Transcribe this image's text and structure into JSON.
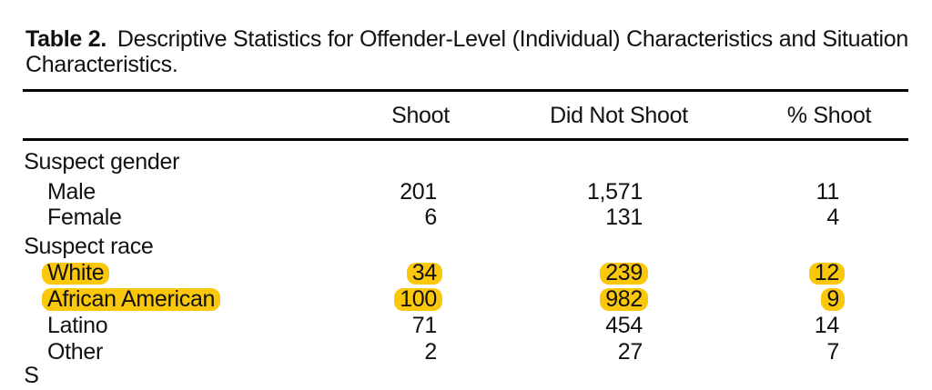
{
  "caption": {
    "label": "Table 2.",
    "line1_rest": "Descriptive Statistics for Offender-Level (Individual) Characteristics and Situation",
    "line2": "Characteristics."
  },
  "table": {
    "columns": [
      "Shoot",
      "Did Not Shoot",
      "% Shoot"
    ],
    "rows": [
      {
        "label": "Suspect gender",
        "indent": false,
        "highlight": false,
        "values": [
          "",
          "",
          ""
        ]
      },
      {
        "label": "Male",
        "indent": true,
        "highlight": false,
        "values": [
          "201",
          "1,571",
          "11"
        ]
      },
      {
        "label": "Female",
        "indent": true,
        "highlight": false,
        "values": [
          "6",
          "131",
          "4"
        ]
      },
      {
        "label": "Suspect race",
        "indent": false,
        "highlight": false,
        "values": [
          "",
          "",
          ""
        ]
      },
      {
        "label": "White",
        "indent": true,
        "highlight": true,
        "values": [
          "34",
          "239",
          "12"
        ]
      },
      {
        "label": "African American",
        "indent": true,
        "highlight": true,
        "values": [
          "100",
          "982",
          "9"
        ]
      },
      {
        "label": "Latino",
        "indent": true,
        "highlight": false,
        "values": [
          "71",
          "454",
          "14"
        ]
      },
      {
        "label": "Other",
        "indent": true,
        "highlight": false,
        "values": [
          "2",
          "27",
          "7"
        ]
      }
    ],
    "next_row_visible_fragment": "S"
  },
  "colors": {
    "highlight": "#FBC70A",
    "text": "#111111",
    "rule": "#000000"
  }
}
